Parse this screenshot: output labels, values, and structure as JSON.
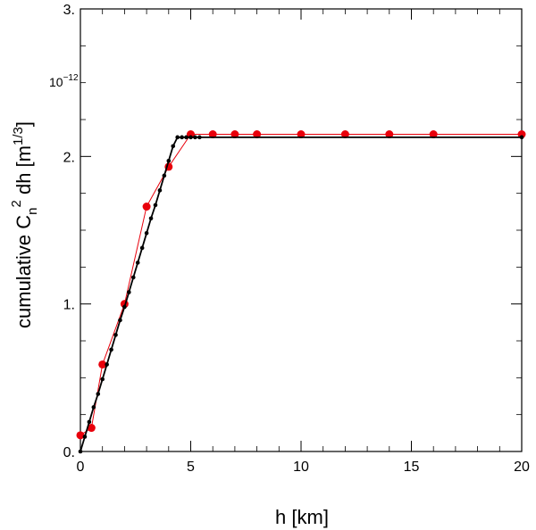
{
  "chart_data": {
    "type": "line",
    "xlabel": "h [km]",
    "ylabel_main": "cumulative C",
    "ylabel_sub": "n",
    "ylabel_sup": "2",
    "ylabel_mid": " dh [m",
    "ylabel_unit_sup": "1/3",
    "ylabel_end": "]",
    "y_multiplier": "10",
    "y_multiplier_exp": "−12",
    "xlim": [
      0,
      20
    ],
    "ylim": [
      0,
      3
    ],
    "x_ticks": [
      {
        "value": 0,
        "label": "0"
      },
      {
        "value": 5,
        "label": "5"
      },
      {
        "value": 10,
        "label": "10"
      },
      {
        "value": 15,
        "label": "15"
      },
      {
        "value": 20,
        "label": "20"
      }
    ],
    "y_ticks": [
      {
        "value": 0,
        "label": "0."
      },
      {
        "value": 1,
        "label": "1."
      },
      {
        "value": 2,
        "label": "2."
      },
      {
        "value": 3,
        "label": "3."
      }
    ],
    "grid": false,
    "series": [
      {
        "color": "#e8000b",
        "marker_size": 4.5,
        "line_width": 1,
        "x": [
          0,
          0.5,
          1,
          2,
          3,
          4,
          5,
          6,
          7,
          8,
          10,
          12,
          14,
          16,
          20
        ],
        "y": [
          0.11,
          0.16,
          0.59,
          1.0,
          1.66,
          1.93,
          2.15,
          2.15,
          2.15,
          2.15,
          2.15,
          2.15,
          2.15,
          2.15,
          2.15
        ]
      },
      {
        "color": "#000000",
        "marker_size": 2.3,
        "line_width": 1.8,
        "x": [
          0,
          0.2,
          0.4,
          0.6,
          0.8,
          1.0,
          1.2,
          1.4,
          1.6,
          1.8,
          2.0,
          2.2,
          2.4,
          2.6,
          2.8,
          3.0,
          3.2,
          3.4,
          3.6,
          3.8,
          4.0,
          4.2,
          4.4,
          4.6,
          4.8,
          5.0,
          5.2,
          5.4,
          20
        ],
        "y": [
          0.0,
          0.1,
          0.2,
          0.3,
          0.39,
          0.49,
          0.59,
          0.69,
          0.79,
          0.89,
          0.98,
          1.08,
          1.18,
          1.28,
          1.38,
          1.48,
          1.58,
          1.67,
          1.77,
          1.87,
          1.97,
          2.07,
          2.13,
          2.13,
          2.13,
          2.13,
          2.13,
          2.13,
          2.13
        ]
      }
    ]
  }
}
